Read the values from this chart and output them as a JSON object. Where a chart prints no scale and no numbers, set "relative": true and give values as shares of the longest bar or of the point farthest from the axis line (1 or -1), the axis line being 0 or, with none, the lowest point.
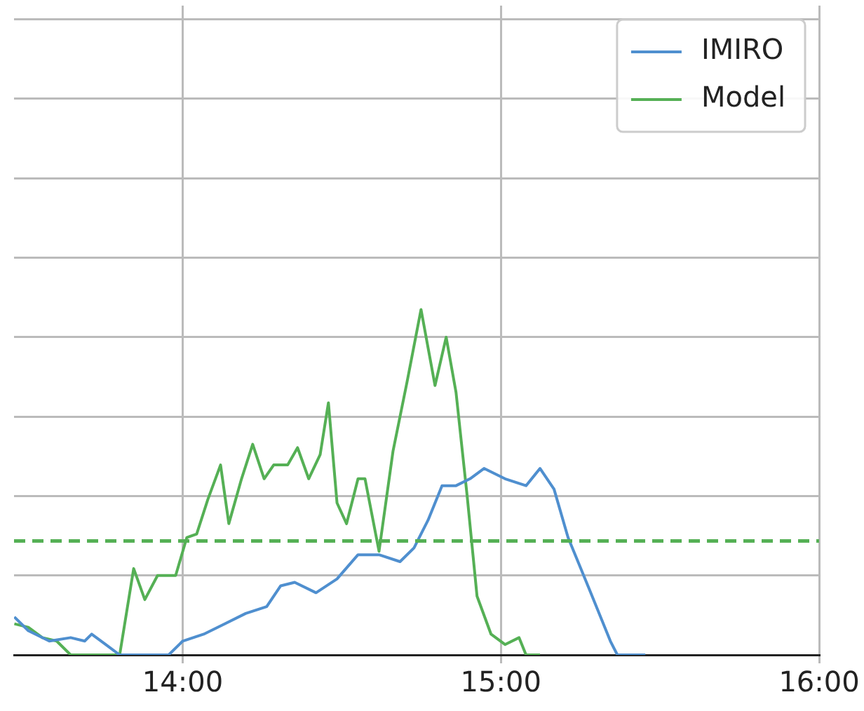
{
  "chart_data": {
    "type": "line",
    "relative": true,
    "xlim": [
      13.47,
      16
    ],
    "xticks": [
      {
        "value": 14,
        "label": "14:00"
      },
      {
        "value": 15,
        "label": "15:00"
      },
      {
        "value": 16,
        "label": "16:00"
      }
    ],
    "grid": true,
    "legend": "top right",
    "marker": "none",
    "line_style": "solid",
    "series": [
      {
        "name": "IMIRO",
        "color": "#4f8fcf",
        "x": [
          13.471,
          13.515,
          13.581,
          13.648,
          13.692,
          13.714,
          13.758,
          13.802,
          13.956,
          14.0,
          14.066,
          14.132,
          14.198,
          14.264,
          14.308,
          14.352,
          14.419,
          14.485,
          14.551,
          14.617,
          14.683,
          14.727,
          14.771,
          14.815,
          14.859,
          14.903,
          14.947,
          15.013,
          15.079,
          15.123,
          15.167,
          15.211,
          15.278,
          15.344,
          15.366,
          15.454
        ],
        "values": [
          0.11,
          0.07,
          0.04,
          0.05,
          0.04,
          0.06,
          0.03,
          0,
          0,
          0.04,
          0.06,
          0.09,
          0.12,
          0.14,
          0.2,
          0.21,
          0.18,
          0.22,
          0.29,
          0.29,
          0.27,
          0.31,
          0.39,
          0.49,
          0.49,
          0.51,
          0.54,
          0.51,
          0.49,
          0.54,
          0.48,
          0.34,
          0.19,
          0.04,
          0,
          0
        ]
      },
      {
        "name": "Model",
        "color": "#55b055",
        "x": [
          13.471,
          13.515,
          13.559,
          13.604,
          13.648,
          13.802,
          13.846,
          13.881,
          13.921,
          13.978,
          14.013,
          14.044,
          14.079,
          14.119,
          14.145,
          14.185,
          14.22,
          14.256,
          14.286,
          14.33,
          14.361,
          14.396,
          14.432,
          14.458,
          14.485,
          14.515,
          14.551,
          14.573,
          14.617,
          14.661,
          14.705,
          14.749,
          14.793,
          14.828,
          14.859,
          14.894,
          14.925,
          14.969,
          15.013,
          15.057,
          15.079,
          15.123
        ],
        "values": [
          0.09,
          0.08,
          0.05,
          0.04,
          0,
          0,
          0.25,
          0.16,
          0.23,
          0.23,
          0.34,
          0.35,
          0.45,
          0.55,
          0.38,
          0.51,
          0.61,
          0.51,
          0.55,
          0.55,
          0.6,
          0.51,
          0.58,
          0.73,
          0.44,
          0.38,
          0.51,
          0.51,
          0.3,
          0.59,
          0.79,
          1,
          0.78,
          0.92,
          0.76,
          0.46,
          0.17,
          0.06,
          0.03,
          0.05,
          0,
          0
        ]
      }
    ],
    "ref_lines": [
      {
        "axis": "y",
        "value": 0.33,
        "color": "#55b055",
        "line_style": "dashed"
      }
    ]
  }
}
